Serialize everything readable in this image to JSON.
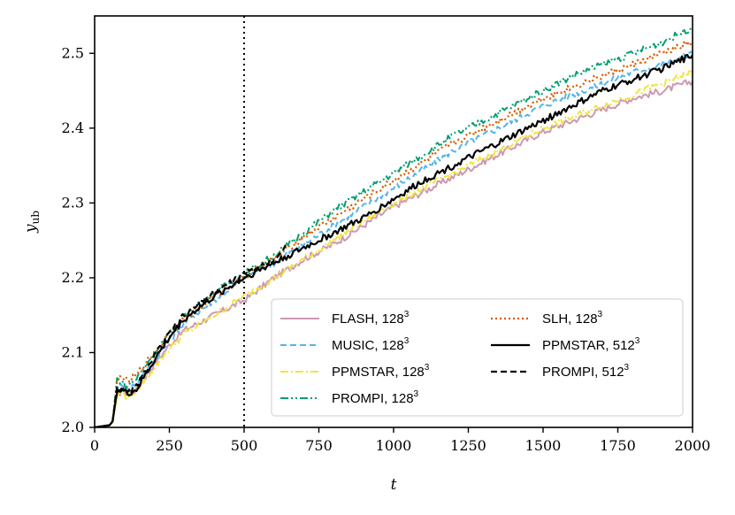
{
  "chart_data": {
    "type": "line",
    "title": "",
    "xlabel": "t",
    "ylabel_main": "y",
    "ylabel_sub": "ub",
    "xlim": [
      0,
      2000
    ],
    "ylim": [
      2.0,
      2.55
    ],
    "xticks": [
      0,
      250,
      500,
      750,
      1000,
      1250,
      1500,
      1750,
      2000
    ],
    "xtick_labels": [
      "0",
      "250",
      "500",
      "750",
      "1000",
      "1250",
      "1500",
      "1750",
      "2000"
    ],
    "yticks": [
      2.0,
      2.1,
      2.2,
      2.3,
      2.4,
      2.5
    ],
    "ytick_labels": [
      "2.0",
      "2.1",
      "2.2",
      "2.3",
      "2.4",
      "2.5"
    ],
    "grid": false,
    "legend_placement": "lower-right",
    "vline": {
      "x": 500,
      "style": "dotted",
      "color": "#000000"
    },
    "series": [
      {
        "name": "FLASH, 128",
        "sup": "3",
        "color": "#cc99b3",
        "dash": "",
        "width": 2,
        "x": [
          0,
          50,
          60,
          75,
          90,
          110,
          140,
          200,
          250,
          300,
          400,
          500,
          600,
          700,
          800,
          900,
          1000,
          1100,
          1200,
          1300,
          1400,
          1500,
          1600,
          1700,
          1800,
          1900,
          2000
        ],
        "y": [
          2.0,
          2.003,
          2.008,
          2.04,
          2.05,
          2.045,
          2.05,
          2.085,
          2.11,
          2.13,
          2.15,
          2.17,
          2.2,
          2.225,
          2.245,
          2.27,
          2.295,
          2.315,
          2.335,
          2.355,
          2.375,
          2.395,
          2.41,
          2.425,
          2.44,
          2.45,
          2.463
        ]
      },
      {
        "name": "MUSIC, 128",
        "sup": "3",
        "color": "#56b4e9",
        "dash": "7,4",
        "width": 2,
        "x": [
          0,
          50,
          60,
          75,
          90,
          110,
          140,
          200,
          250,
          300,
          400,
          500,
          600,
          700,
          800,
          900,
          1000,
          1100,
          1200,
          1300,
          1400,
          1500,
          1600,
          1700,
          1800,
          1900,
          2000
        ],
        "y": [
          2.0,
          2.003,
          2.008,
          2.05,
          2.06,
          2.05,
          2.06,
          2.09,
          2.115,
          2.14,
          2.17,
          2.2,
          2.22,
          2.245,
          2.27,
          2.295,
          2.32,
          2.345,
          2.37,
          2.39,
          2.41,
          2.43,
          2.445,
          2.46,
          2.475,
          2.485,
          2.5
        ]
      },
      {
        "name": "PPMSTAR, 128",
        "sup": "3",
        "color": "#f0e442",
        "dash": "9,3,2,3",
        "width": 2,
        "x": [
          0,
          50,
          60,
          75,
          90,
          110,
          140,
          200,
          250,
          300,
          400,
          500,
          600,
          700,
          800,
          900,
          1000,
          1100,
          1200,
          1300,
          1400,
          1500,
          1600,
          1700,
          1800,
          1900,
          2000
        ],
        "y": [
          2.0,
          2.003,
          2.006,
          2.04,
          2.05,
          2.04,
          2.05,
          2.08,
          2.105,
          2.125,
          2.15,
          2.175,
          2.2,
          2.225,
          2.25,
          2.275,
          2.3,
          2.32,
          2.34,
          2.36,
          2.38,
          2.4,
          2.415,
          2.43,
          2.445,
          2.46,
          2.475
        ]
      },
      {
        "name": "PROMPI, 128",
        "sup": "3",
        "color": "#009e73",
        "dash": "9,3,2,3,2,3",
        "width": 2,
        "x": [
          0,
          50,
          60,
          75,
          90,
          110,
          140,
          200,
          250,
          300,
          400,
          500,
          600,
          700,
          800,
          900,
          1000,
          1100,
          1200,
          1300,
          1400,
          1500,
          1600,
          1700,
          1800,
          1900,
          2000
        ],
        "y": [
          2.0,
          2.003,
          2.008,
          2.065,
          2.06,
          2.055,
          2.065,
          2.1,
          2.125,
          2.15,
          2.18,
          2.205,
          2.23,
          2.26,
          2.29,
          2.315,
          2.34,
          2.365,
          2.39,
          2.41,
          2.43,
          2.45,
          2.47,
          2.485,
          2.5,
          2.515,
          2.535
        ]
      },
      {
        "name": "SLH, 128",
        "sup": "3",
        "color": "#d55e00",
        "dash": "2,3",
        "width": 2.2,
        "x": [
          0,
          50,
          60,
          75,
          90,
          110,
          140,
          200,
          250,
          300,
          400,
          500,
          600,
          700,
          800,
          900,
          1000,
          1100,
          1200,
          1300,
          1400,
          1500,
          1600,
          1700,
          1800,
          1900,
          2000
        ],
        "y": [
          2.0,
          2.003,
          2.008,
          2.06,
          2.07,
          2.06,
          2.07,
          2.1,
          2.125,
          2.145,
          2.175,
          2.2,
          2.225,
          2.255,
          2.28,
          2.305,
          2.33,
          2.355,
          2.38,
          2.4,
          2.42,
          2.44,
          2.455,
          2.47,
          2.485,
          2.5,
          2.515
        ]
      },
      {
        "name": "PPMSTAR, 512",
        "sup": "3",
        "color": "#000000",
        "dash": "",
        "width": 2.2,
        "x": [
          0,
          50,
          60,
          75,
          90,
          110,
          140,
          200,
          250,
          300,
          400,
          500,
          600,
          700,
          800,
          900,
          1000,
          1100,
          1200,
          1300,
          1400,
          1500,
          1600,
          1700,
          1800,
          1900,
          2000
        ],
        "y": [
          2.0,
          2.003,
          2.008,
          2.05,
          2.05,
          2.045,
          2.05,
          2.09,
          2.12,
          2.145,
          2.175,
          2.2,
          2.22,
          2.24,
          2.26,
          2.28,
          2.305,
          2.33,
          2.35,
          2.37,
          2.39,
          2.41,
          2.43,
          2.45,
          2.465,
          2.48,
          2.498
        ]
      },
      {
        "name": "PROMPI, 512",
        "sup": "3",
        "color": "#000000",
        "dash": "7,4",
        "width": 2.2,
        "x": [
          0,
          50,
          60,
          75,
          90,
          110,
          140,
          200,
          250,
          300,
          400,
          500,
          550,
          600,
          650
        ],
        "y": [
          2.0,
          2.003,
          2.008,
          2.055,
          2.05,
          2.045,
          2.055,
          2.095,
          2.125,
          2.15,
          2.18,
          2.205,
          2.215,
          2.225,
          2.245
        ]
      }
    ]
  }
}
